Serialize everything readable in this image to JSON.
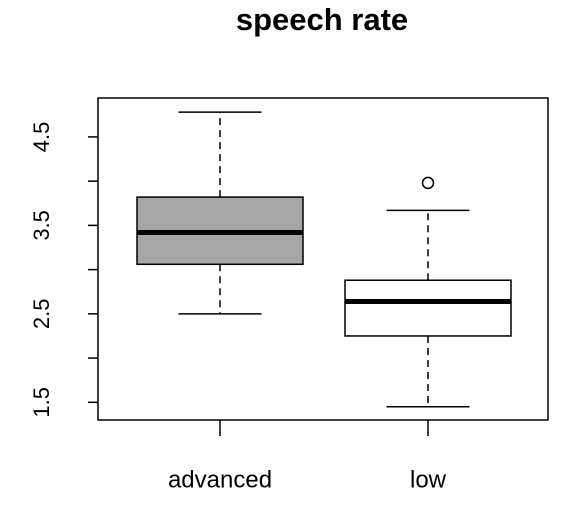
{
  "chart_data": {
    "type": "box",
    "title": "speech rate",
    "categories": [
      "advanced",
      "low"
    ],
    "whisker_low": [
      2.5,
      1.45
    ],
    "q1": [
      3.06,
      2.25
    ],
    "median": [
      3.42,
      2.64
    ],
    "q3": [
      3.82,
      2.88
    ],
    "whisker_high": [
      4.78,
      3.67
    ],
    "outliers": [
      [],
      [
        3.98
      ]
    ],
    "colors": [
      "#a6a6a6",
      "#ffffff"
    ],
    "ylim": [
      1.3,
      4.94
    ],
    "yticks": [
      1.5,
      2.5,
      3.5,
      4.5
    ],
    "yminor_ticks": [
      2,
      3,
      4
    ]
  }
}
